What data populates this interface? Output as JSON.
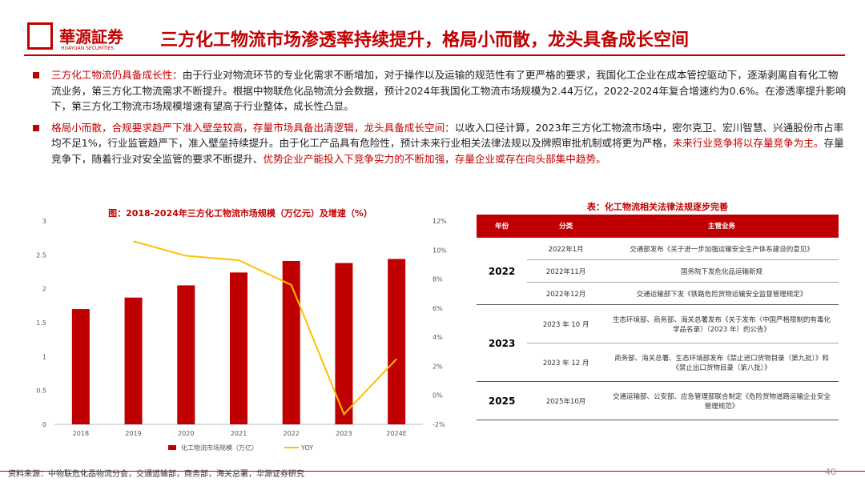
{
  "header": {
    "logo": "華源証券",
    "logo_sub": "HUAYUAN SECURITIES",
    "title": "三方化工物流市场渗透率持续提升，格局小而散，龙头具备成长空间"
  },
  "bullets": [
    [
      {
        "text": "三方化工物流仍具备成长性：",
        "emphasis": true
      },
      {
        "text": "由于行业对物流环节的专业化需求不断增加，对于操作以及运输的规范性有了更严格的要求，我国化工企业在成本管控驱动下，逐渐剥离自有化工物流业务，第三方化工物流需求不断提升。根据中物联危化品物流分会数据，预计2024年我国化工物流市场规模为2.44万亿，2022-2024年复合增速约为0.6%。在渗透率提升影响下，第三方化工物流市场规模增速有望高于行业整体，成长性凸显。",
        "emphasis": false
      }
    ],
    [
      {
        "text": "格局小而散，合规要求趋严下准入壁垒较高，存量市场具备出清逻辑，龙头具备成长空间：",
        "emphasis": true
      },
      {
        "text": "以收入口径计算，2023年三方化工物流市场中，密尔克卫、宏川智慧、兴通股份市占率均不足1%，行业监管趋严下，准入壁垒持续提升。由于化工产品具有危险性，预计未来行业相关法律法规以及牌照审批机制或将更为严格，",
        "emphasis": false
      },
      {
        "text": "未来行业竞争将以存量竞争为主。",
        "emphasis": true
      },
      {
        "text": "存量竞争下，随着行业对安全监管的要求不断提升、",
        "emphasis": false
      },
      {
        "text": "优势企业产能投入下竞争实力的不断加强，存量企业或存在向头部集中趋势。",
        "emphasis": true
      }
    ]
  ],
  "chart_data": {
    "type": "bar",
    "title": "图：2018-2024年三方化工物流市场规模（万亿元）及增速（%）",
    "categories": [
      "2018",
      "2019",
      "2020",
      "2021",
      "2022",
      "2023",
      "2024E"
    ],
    "series": [
      {
        "name": "化工物流市场规模（万亿）",
        "color": "#c00000",
        "type": "bar",
        "values": [
          1.7,
          1.87,
          2.05,
          2.24,
          2.41,
          2.38,
          2.44
        ]
      },
      {
        "name": "YOY",
        "color": "#ffc000",
        "type": "line",
        "axis": "y2",
        "values": [
          null,
          10.6,
          9.6,
          9.3,
          7.6,
          -1.3,
          2.5
        ]
      }
    ],
    "ylim": [
      0,
      3
    ],
    "yticks": [
      0,
      0.5,
      1,
      1.5,
      2,
      2.5,
      3
    ],
    "y2lim": [
      -2,
      12
    ],
    "y2ticks": [
      {
        "value": -2,
        "label": "-2%"
      },
      {
        "value": 0,
        "label": "0%"
      },
      {
        "value": 2,
        "label": "2%"
      },
      {
        "value": 4,
        "label": "4%"
      },
      {
        "value": 6,
        "label": "6%"
      },
      {
        "value": 8,
        "label": "8%"
      },
      {
        "value": 10,
        "label": "10%"
      },
      {
        "value": 12,
        "label": "12%"
      }
    ],
    "grid": false,
    "legend": "bottom"
  },
  "table": {
    "title": "表：化工物流相关法律法规逐步完善",
    "header": [
      "年份",
      "分类",
      "主管业务"
    ],
    "groups": [
      {
        "year": "2022",
        "rows": [
          [
            "2022年1月",
            "交通部发布《关于进一步加强运输安全生产体系建设的意见》"
          ],
          [
            "2022年11月",
            "国务院下发危化品运输新规"
          ],
          [
            "2022年12月",
            "交通运输部下发《铁路危险货物运输安全监督管理规定》"
          ]
        ]
      },
      {
        "year": "2023",
        "rows": [
          [
            "2023 年 10 月",
            "生态环境部、商务部、海关总署发布《关于发布〈中国严格限制的有毒化学品名录〉（2023 年）的公告》"
          ],
          [
            "2023 年 12 月",
            "商务部、海关总署、生态环境部发布《禁止进口货物目录（第九批）》和《禁止出口货物目录（第八批）》"
          ]
        ]
      },
      {
        "year": "2025",
        "rows": [
          [
            "2025年10月",
            "交通运输部、公安部、应急管理部联合制定《危险货物道路运输企业安全管理规范》"
          ]
        ]
      }
    ]
  },
  "footer": {
    "source": "资料来源：中物联危化品物流分会，交通运输部，商务部，海关总署，华源证券研究",
    "page": "48"
  }
}
